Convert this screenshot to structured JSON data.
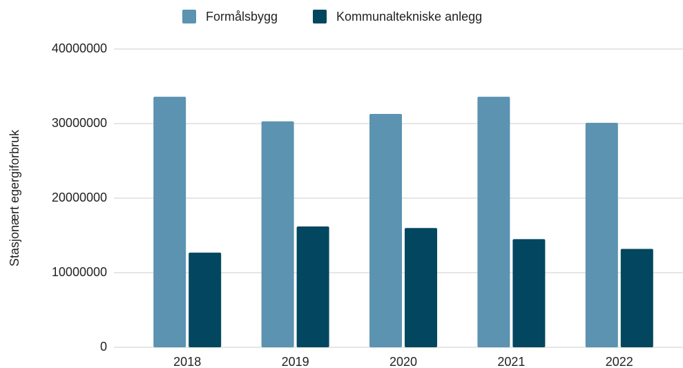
{
  "chart_data": {
    "type": "bar",
    "y_label": "Stasjonært egergiforbruk",
    "categories": [
      "2018",
      "2019",
      "2020",
      "2021",
      "2022"
    ],
    "series": [
      {
        "name": "Formålsbygg",
        "color": "#5b93b0",
        "values": [
          33600000,
          30300000,
          31300000,
          33600000,
          30100000
        ]
      },
      {
        "name": "Kommunaltekniske anlegg",
        "color": "#02475f",
        "values": [
          12700000,
          16200000,
          16000000,
          14500000,
          13200000
        ]
      }
    ],
    "ylim": [
      0,
      40000000
    ],
    "yticks": [
      0,
      10000000,
      20000000,
      30000000,
      40000000
    ],
    "grid": true
  }
}
